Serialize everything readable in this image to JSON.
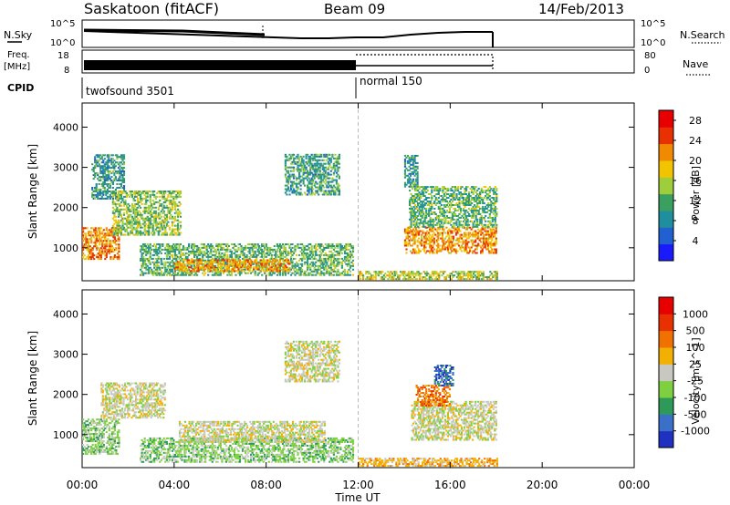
{
  "header": {
    "station": "Saskatoon (fitACF)",
    "beam": "Beam 09",
    "date": "14/Feb/2013"
  },
  "top_panels": {
    "nsky_label": "N.Sky",
    "nsky_ticks": [
      "10^5",
      "10^0"
    ],
    "nsearch_label": "N.Search",
    "freq_label": "Freq.",
    "freq_unit": "[MHz]",
    "freq_ticks": [
      "18",
      "8"
    ],
    "nave_label": "Nave",
    "nave_ticks": [
      "80",
      "0"
    ],
    "cpid_label": "CPID",
    "cpid_modes": [
      {
        "name": "twofsound 3501",
        "start_hour": 0,
        "end_hour": 12
      },
      {
        "name": "normal 150",
        "start_hour": 12,
        "end_hour": 18
      }
    ]
  },
  "chart_data": [
    {
      "type": "heatmap",
      "title": "Power",
      "xlabel": "Time UT",
      "ylabel": "Slant Range [km]",
      "xlim": [
        0,
        24
      ],
      "x_ticks": [
        "00:00",
        "04:00",
        "08:00",
        "12:00",
        "16:00",
        "20:00",
        "00:00"
      ],
      "ylim": [
        180,
        4600
      ],
      "y_ticks": [
        "1000",
        "2000",
        "3000",
        "4000"
      ],
      "colorbar": {
        "label": "Power [dB]",
        "ticks": [
          "4",
          "8",
          "12",
          "16",
          "20",
          "24",
          "28"
        ],
        "range": [
          0,
          30
        ],
        "colors": [
          "#1a1aff",
          "#2060d0",
          "#1f8fa0",
          "#3aa060",
          "#9ecf3a",
          "#f2c400",
          "#f08a00",
          "#e83000",
          "#e80000"
        ]
      },
      "data_end_hour": 18,
      "regions": [
        {
          "t0": 0.0,
          "t1": 1.6,
          "r0": 700,
          "r1": 1500,
          "level": 22
        },
        {
          "t0": 0.4,
          "t1": 1.8,
          "r0": 2200,
          "r1": 3300,
          "level": 9
        },
        {
          "t0": 1.3,
          "t1": 4.3,
          "r0": 1300,
          "r1": 2400,
          "level": 14
        },
        {
          "t0": 2.5,
          "t1": 11.8,
          "r0": 300,
          "r1": 1100,
          "level": 12
        },
        {
          "t0": 4.0,
          "t1": 9.0,
          "r0": 400,
          "r1": 700,
          "level": 22
        },
        {
          "t0": 8.8,
          "t1": 11.2,
          "r0": 2300,
          "r1": 3300,
          "level": 10
        },
        {
          "t0": 14.0,
          "t1": 18.0,
          "r0": 850,
          "r1": 1500,
          "level": 22
        },
        {
          "t0": 14.2,
          "t1": 18.0,
          "r0": 1500,
          "r1": 2500,
          "level": 12
        },
        {
          "t0": 14.0,
          "t1": 14.6,
          "r0": 2500,
          "r1": 3300,
          "level": 9
        },
        {
          "t0": 12.0,
          "t1": 18.0,
          "r0": 200,
          "r1": 400,
          "level": 16
        }
      ]
    },
    {
      "type": "heatmap",
      "title": "Velocity",
      "xlabel": "Time UT",
      "ylabel": "Slant Range [km]",
      "xlim": [
        0,
        24
      ],
      "x_ticks": [
        "00:00",
        "04:00",
        "08:00",
        "12:00",
        "16:00",
        "20:00",
        "00:00"
      ],
      "ylim": [
        180,
        4600
      ],
      "y_ticks": [
        "1000",
        "2000",
        "3000",
        "4000"
      ],
      "colorbar": {
        "label": "Velocity [m s^-1]",
        "ticks": [
          "1000",
          "500",
          "100",
          "25",
          "-25",
          "-100",
          "-500",
          "-1000"
        ],
        "colors": [
          "#2030c0",
          "#3a70c8",
          "#2e9a5a",
          "#7ed040",
          "#c8c8c0",
          "#f2b000",
          "#f07000",
          "#e83000",
          "#e80000"
        ]
      },
      "data_end_hour": 18,
      "regions": [
        {
          "t0": 0.0,
          "t1": 1.6,
          "r0": 500,
          "r1": 1400,
          "level": 3
        },
        {
          "t0": 0.8,
          "t1": 3.6,
          "r0": 1400,
          "r1": 2300,
          "level": 4
        },
        {
          "t0": 2.5,
          "t1": 11.8,
          "r0": 300,
          "r1": 900,
          "level": 3
        },
        {
          "t0": 4.2,
          "t1": 10.5,
          "r0": 800,
          "r1": 1300,
          "level": 4
        },
        {
          "t0": 8.8,
          "t1": 11.2,
          "r0": 2300,
          "r1": 3300,
          "level": 4
        },
        {
          "t0": 14.3,
          "t1": 18.0,
          "r0": 850,
          "r1": 1800,
          "level": 4
        },
        {
          "t0": 14.5,
          "t1": 16.0,
          "r0": 1700,
          "r1": 2200,
          "level": 6
        },
        {
          "t0": 15.3,
          "t1": 16.1,
          "r0": 2200,
          "r1": 2700,
          "level": 1
        },
        {
          "t0": 12.0,
          "t1": 18.0,
          "r0": 200,
          "r1": 400,
          "level": 5
        }
      ]
    }
  ]
}
